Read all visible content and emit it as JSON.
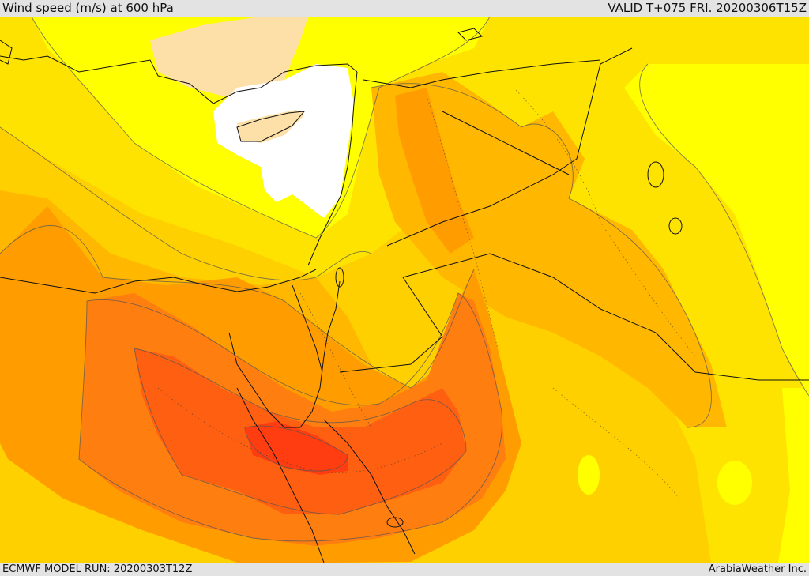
{
  "header": {
    "title": "Wind speed (m/s) at 600 hPa",
    "valid_time": "VALID T+075 FRI. 20200306T15Z"
  },
  "footer": {
    "model_run": "ECMWF MODEL RUN: 20200303T12Z",
    "credit": "ArabiaWeather Inc."
  },
  "colors": {
    "very_light": "#ffffff",
    "light": "#fde0a8",
    "yellow": "#ffff00",
    "yellow_gold": "#ffe300",
    "gold": "#ffd000",
    "orange_light": "#ffb700",
    "orange": "#ff9d00",
    "orange_dark": "#ff7e10",
    "red_orange": "#ff5f10",
    "red": "#ff3d10"
  }
}
